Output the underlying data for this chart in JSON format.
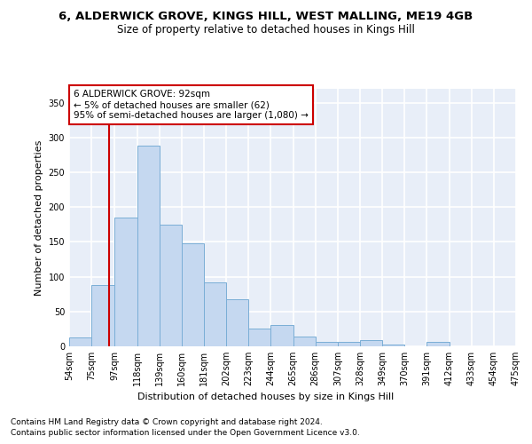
{
  "title_line1": "6, ALDERWICK GROVE, KINGS HILL, WEST MALLING, ME19 4GB",
  "title_line2": "Size of property relative to detached houses in Kings Hill",
  "xlabel": "Distribution of detached houses by size in Kings Hill",
  "ylabel": "Number of detached properties",
  "footnote1": "Contains HM Land Registry data © Crown copyright and database right 2024.",
  "footnote2": "Contains public sector information licensed under the Open Government Licence v3.0.",
  "annotation_title": "6 ALDERWICK GROVE: 92sqm",
  "annotation_line2": "← 5% of detached houses are smaller (62)",
  "annotation_line3": "95% of semi-detached houses are larger (1,080) →",
  "bar_color": "#c5d8f0",
  "bar_edge_color": "#7aaed6",
  "vline_color": "#cc0000",
  "vline_x": 92,
  "bin_edges": [
    54,
    75,
    97,
    118,
    139,
    160,
    181,
    202,
    223,
    244,
    265,
    286,
    307,
    328,
    349,
    370,
    391,
    412,
    433,
    454,
    475
  ],
  "bar_heights": [
    13,
    88,
    185,
    288,
    175,
    148,
    92,
    68,
    26,
    30,
    14,
    6,
    7,
    9,
    3,
    0,
    6,
    0,
    0,
    0
  ],
  "ylim": [
    0,
    370
  ],
  "yticks": [
    0,
    50,
    100,
    150,
    200,
    250,
    300,
    350
  ],
  "background_color": "#e8eef8",
  "grid_color": "#ffffff",
  "box_color": "#cc0000",
  "title_fontsize": 9.5,
  "subtitle_fontsize": 8.5,
  "label_fontsize": 8,
  "tick_fontsize": 7,
  "footnote_fontsize": 6.5,
  "annotation_fontsize": 7.5
}
